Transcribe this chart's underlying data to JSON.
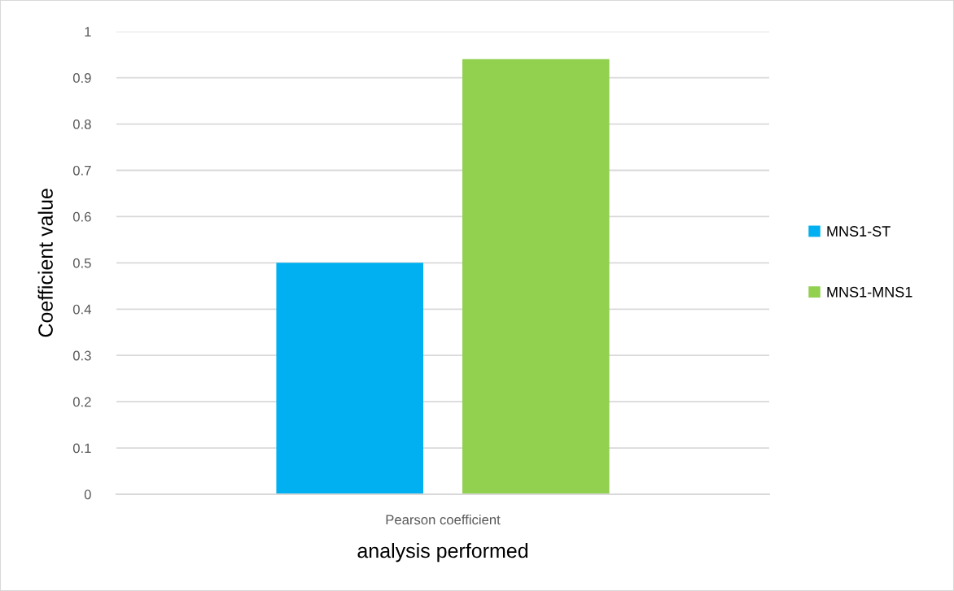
{
  "chart_data": {
    "type": "bar",
    "categories": [
      "Pearson coefficient"
    ],
    "series": [
      {
        "name": "MNS1-ST",
        "color": "#00b0f0",
        "values": [
          0.5
        ]
      },
      {
        "name": "MNS1-MNS1",
        "color": "#92d050",
        "values": [
          0.94
        ]
      }
    ],
    "xlabel": "analysis performed",
    "ylabel": "Coefficient value",
    "ylim": [
      0,
      1
    ],
    "yticks": [
      0,
      0.1,
      0.2,
      0.3,
      0.4,
      0.5,
      0.6,
      0.7,
      0.8,
      0.9,
      1
    ],
    "grid": "y",
    "legend": "right"
  }
}
